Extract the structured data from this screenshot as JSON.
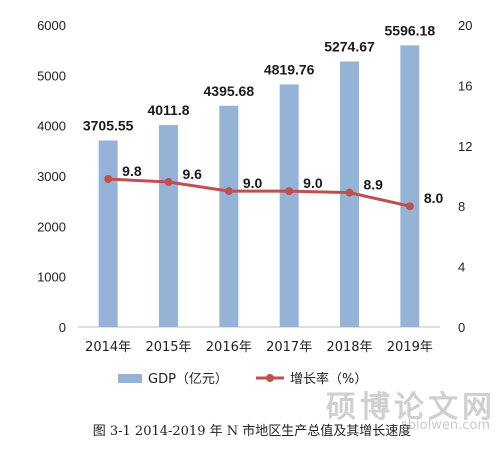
{
  "chart_data": {
    "type": "bar",
    "categories": [
      "2014年",
      "2015年",
      "2016年",
      "2017年",
      "2018年",
      "2019年"
    ],
    "series": [
      {
        "name": "GDP（亿元）",
        "type": "bar",
        "axis": "left",
        "color": "#95B3D7",
        "values": [
          3705.55,
          4011.8,
          4395.68,
          4819.76,
          5274.67,
          5596.18
        ],
        "labels": [
          "3705.55",
          "4011.8",
          "4395.68",
          "4819.76",
          "5274.67",
          "5596.18"
        ]
      },
      {
        "name": "增长率（%）",
        "type": "line",
        "axis": "right",
        "color": "#C0504D",
        "values": [
          9.8,
          9.6,
          9.0,
          9.0,
          8.9,
          8.0
        ],
        "labels": [
          "9.8",
          "9.6",
          "9.0",
          "9.0",
          "8.9",
          "8.0"
        ]
      }
    ],
    "y_left": {
      "ticks": [
        "0",
        "1000",
        "2000",
        "3000",
        "4000",
        "5000",
        "6000"
      ],
      "lim": [
        0,
        6000
      ]
    },
    "y_right": {
      "ticks": [
        "0",
        "4",
        "8",
        "12",
        "16",
        "20"
      ],
      "lim": [
        0,
        20
      ]
    },
    "legend_position": "bottom",
    "grid": false
  },
  "caption": "图 3-1   2014-2019 年 N 市地区生产总值及其增长速度",
  "watermark": {
    "text": "硕博论文网",
    "url": "sbiolwen.com"
  }
}
